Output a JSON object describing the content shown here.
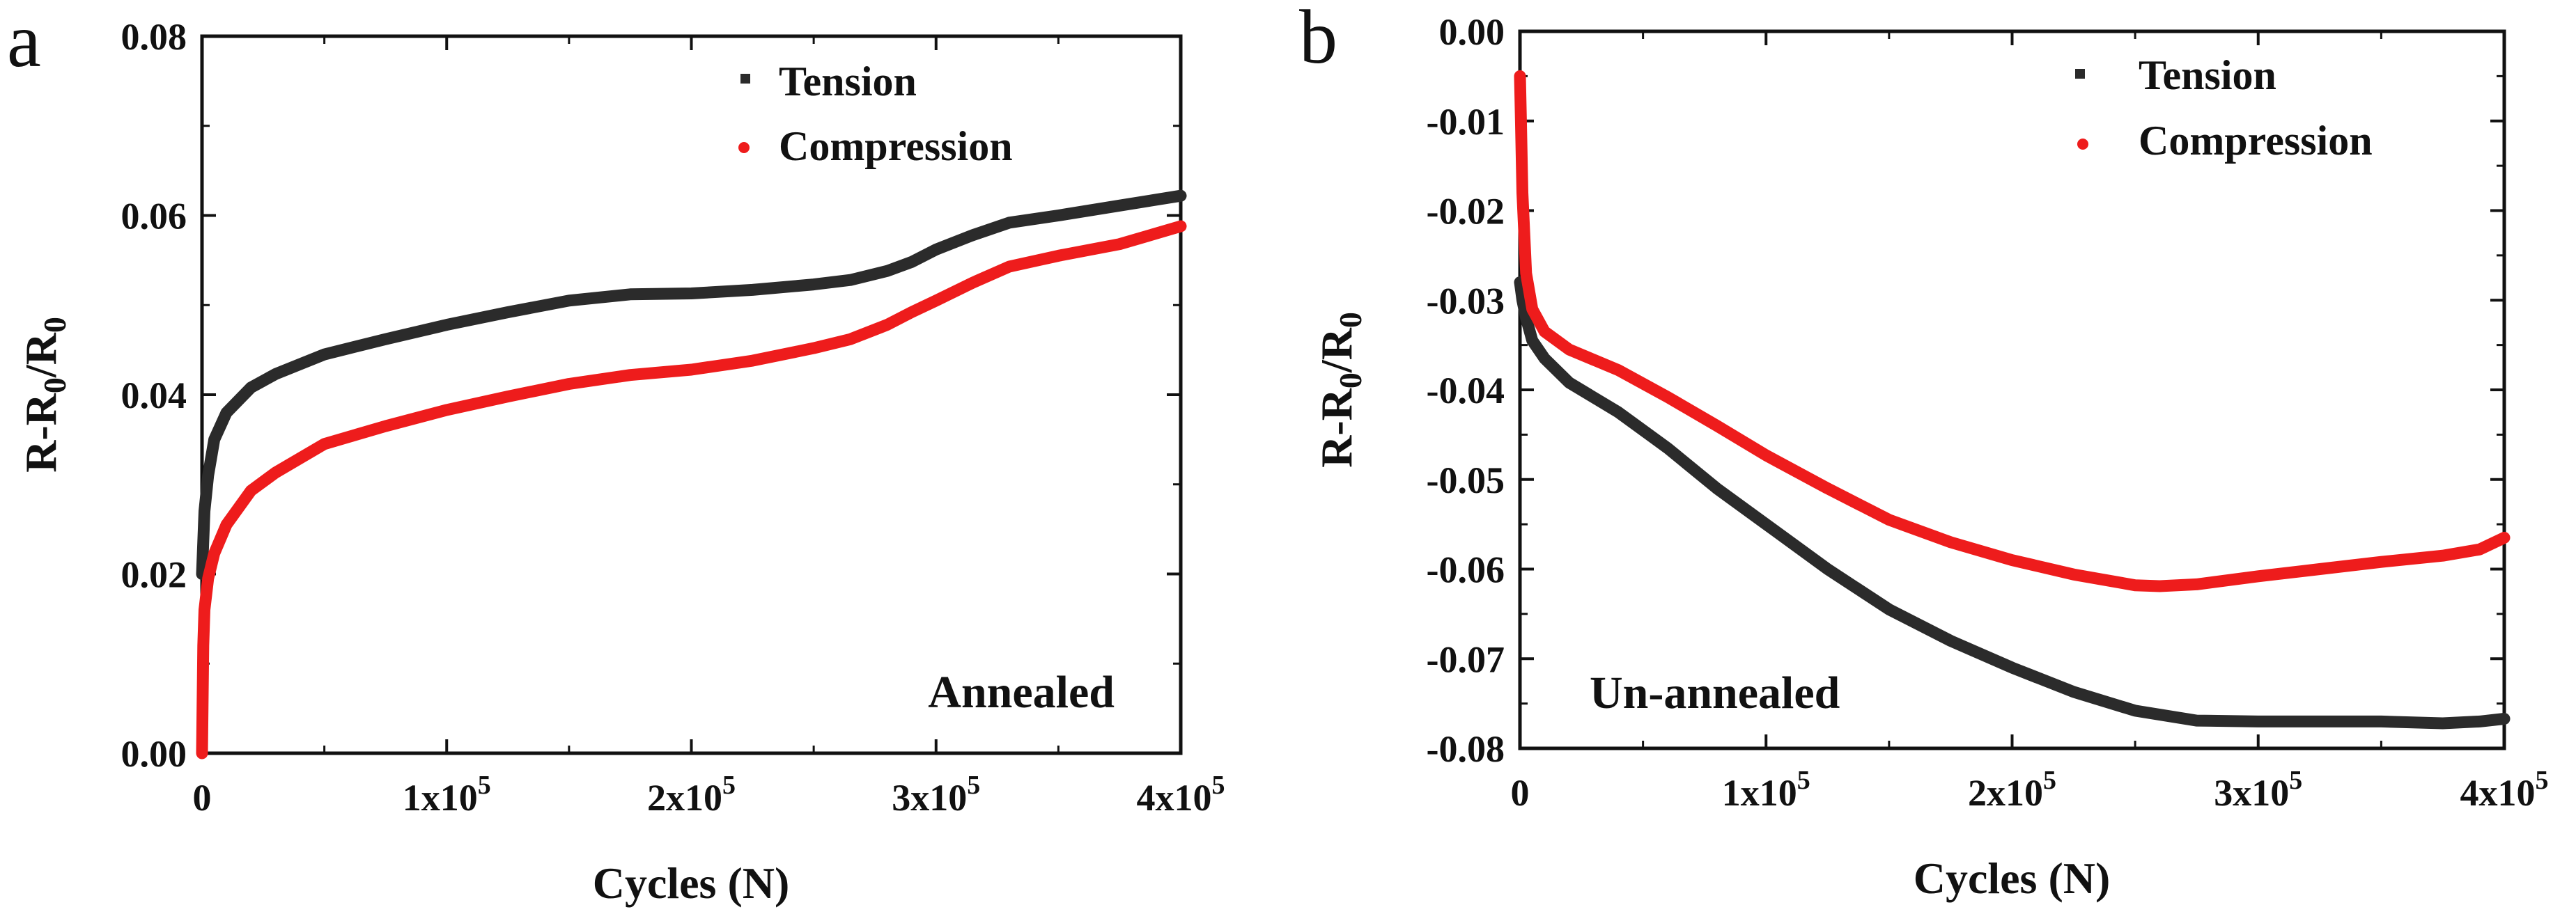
{
  "figure": {
    "background": "#ffffff",
    "axis_color": "#111111"
  },
  "chart_data": [
    {
      "panel_label": "a",
      "type": "line",
      "xlabel": "Cycles (N)",
      "ylabel": "R-R0/R0",
      "ylabel_parts": {
        "main": "R-R",
        "sub": "0",
        "sep": "/R",
        "sub2": "0"
      },
      "xlim": [
        0,
        400000
      ],
      "ylim": [
        0,
        0.08
      ],
      "xticks": [
        {
          "value": 0,
          "base": "0",
          "exp": ""
        },
        {
          "value": 100000,
          "base": "1x10",
          "exp": "5"
        },
        {
          "value": 200000,
          "base": "2x10",
          "exp": "5"
        },
        {
          "value": 300000,
          "base": "3x10",
          "exp": "5"
        },
        {
          "value": 400000,
          "base": "4x10",
          "exp": "5"
        }
      ],
      "yticks": [
        {
          "value": 0.0,
          "label": "0.00"
        },
        {
          "value": 0.02,
          "label": "0.02"
        },
        {
          "value": 0.04,
          "label": "0.04"
        },
        {
          "value": 0.06,
          "label": "0.06"
        },
        {
          "value": 0.08,
          "label": "0.08"
        }
      ],
      "annotation": "Annealed",
      "legend_position": "top-right",
      "series": [
        {
          "name": "Tension",
          "color": "#2b2b2b",
          "x": [
            0,
            1000,
            2500,
            5000,
            10000,
            20000,
            30000,
            50000,
            75000,
            100000,
            125000,
            150000,
            175000,
            200000,
            225000,
            250000,
            265000,
            280000,
            290000,
            300000,
            315000,
            330000,
            350000,
            375000,
            400000
          ],
          "y": [
            0.02,
            0.027,
            0.031,
            0.035,
            0.038,
            0.0408,
            0.0423,
            0.0445,
            0.0462,
            0.0478,
            0.0492,
            0.0505,
            0.0512,
            0.0513,
            0.0517,
            0.0523,
            0.0528,
            0.0538,
            0.0548,
            0.0562,
            0.0578,
            0.0592,
            0.06,
            0.0611,
            0.0622
          ]
        },
        {
          "name": "Compression",
          "color": "#ee1c1c",
          "x": [
            0,
            500,
            1000,
            2500,
            5000,
            10000,
            20000,
            30000,
            50000,
            75000,
            100000,
            125000,
            150000,
            175000,
            200000,
            225000,
            250000,
            265000,
            280000,
            290000,
            300000,
            315000,
            330000,
            350000,
            375000,
            400000
          ],
          "y": [
            0.0,
            0.012,
            0.016,
            0.0195,
            0.0223,
            0.0255,
            0.0293,
            0.0313,
            0.0345,
            0.0365,
            0.0383,
            0.0398,
            0.0412,
            0.0422,
            0.0428,
            0.0438,
            0.0452,
            0.0462,
            0.0478,
            0.0492,
            0.0505,
            0.0525,
            0.0543,
            0.0555,
            0.0568,
            0.0588
          ]
        }
      ]
    },
    {
      "panel_label": "b",
      "type": "line",
      "xlabel": "Cycles (N)",
      "ylabel": "R-R0/R0",
      "ylabel_parts": {
        "main": "R-R",
        "sub": "0",
        "sep": "/R",
        "sub2": "0"
      },
      "xlim": [
        0,
        400000
      ],
      "ylim": [
        -0.08,
        0.0
      ],
      "xticks": [
        {
          "value": 0,
          "base": "0",
          "exp": ""
        },
        {
          "value": 100000,
          "base": "1x10",
          "exp": "5"
        },
        {
          "value": 200000,
          "base": "2x10",
          "exp": "5"
        },
        {
          "value": 300000,
          "base": "3x10",
          "exp": "5"
        },
        {
          "value": 400000,
          "base": "4x10",
          "exp": "5"
        }
      ],
      "yticks": [
        {
          "value": 0.0,
          "label": "0.00"
        },
        {
          "value": -0.01,
          "label": "-0.01"
        },
        {
          "value": -0.02,
          "label": "-0.02"
        },
        {
          "value": -0.03,
          "label": "-0.03"
        },
        {
          "value": -0.04,
          "label": "-0.04"
        },
        {
          "value": -0.05,
          "label": "-0.05"
        },
        {
          "value": -0.06,
          "label": "-0.06"
        },
        {
          "value": -0.07,
          "label": "-0.07"
        },
        {
          "value": -0.08,
          "label": "-0.08"
        }
      ],
      "annotation": "Un-annealed",
      "legend_position": "top-right",
      "series": [
        {
          "name": "Tension",
          "color": "#2b2b2b",
          "x": [
            0,
            1000,
            2500,
            5000,
            10000,
            20000,
            40000,
            60000,
            80000,
            100000,
            125000,
            150000,
            175000,
            200000,
            225000,
            250000,
            275000,
            300000,
            325000,
            350000,
            375000,
            390000,
            400000
          ],
          "y": [
            -0.028,
            -0.03,
            -0.032,
            -0.0345,
            -0.0365,
            -0.0392,
            -0.0425,
            -0.0465,
            -0.051,
            -0.055,
            -0.06,
            -0.0645,
            -0.068,
            -0.071,
            -0.0737,
            -0.0758,
            -0.0769,
            -0.077,
            -0.077,
            -0.077,
            -0.0772,
            -0.077,
            -0.0767
          ]
        },
        {
          "name": "Compression",
          "color": "#ee1c1c",
          "x": [
            0,
            400,
            1000,
            2500,
            5000,
            10000,
            20000,
            40000,
            60000,
            80000,
            100000,
            125000,
            150000,
            175000,
            200000,
            225000,
            250000,
            260000,
            275000,
            300000,
            325000,
            350000,
            375000,
            390000,
            400000
          ],
          "y": [
            -0.005,
            -0.01,
            -0.018,
            -0.027,
            -0.031,
            -0.0335,
            -0.0355,
            -0.0378,
            -0.0408,
            -0.044,
            -0.0473,
            -0.051,
            -0.0545,
            -0.057,
            -0.059,
            -0.0606,
            -0.0618,
            -0.0619,
            -0.0617,
            -0.0608,
            -0.06,
            -0.0592,
            -0.0585,
            -0.0578,
            -0.0565
          ]
        }
      ]
    }
  ]
}
